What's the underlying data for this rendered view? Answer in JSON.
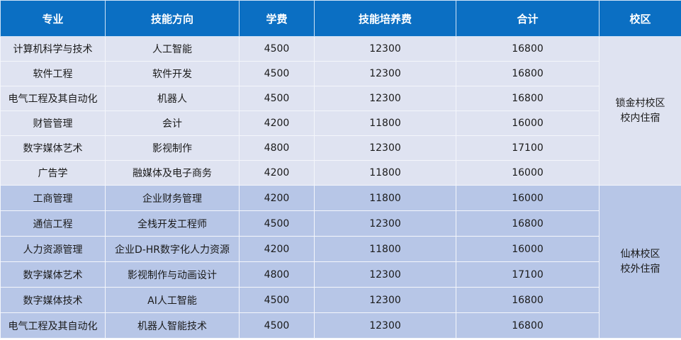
{
  "colors": {
    "header_bg": "#0b6fc3",
    "group1_bg": "#dfe3f1",
    "group2_bg": "#b7c6e7"
  },
  "headers": [
    "专业",
    "技能方向",
    "学费",
    "技能培养费",
    "合计",
    "校区"
  ],
  "groups": [
    {
      "campus_line1": "锁金村校区",
      "campus_line2": "校内住宿",
      "rows": [
        [
          "计算机科学与技术",
          "人工智能",
          "4500",
          "12300",
          "16800"
        ],
        [
          "软件工程",
          "软件开发",
          "4500",
          "12300",
          "16800"
        ],
        [
          "电气工程及其自动化",
          "机器人",
          "4500",
          "12300",
          "16800"
        ],
        [
          "财管管理",
          "会计",
          "4200",
          "11800",
          "16000"
        ],
        [
          "数字媒体艺术",
          "影视制作",
          "4800",
          "12300",
          "17100"
        ],
        [
          "广告学",
          "融媒体及电子商务",
          "4200",
          "11800",
          "16000"
        ]
      ]
    },
    {
      "campus_line1": "仙林校区",
      "campus_line2": "校外住宿",
      "rows": [
        [
          "工商管理",
          "企业财务管理",
          "4200",
          "11800",
          "16000"
        ],
        [
          "通信工程",
          "全栈开发工程师",
          "4500",
          "12300",
          "16800"
        ],
        [
          "人力资源管理",
          "企业D-HR数字化人力资源",
          "4200",
          "11800",
          "16000"
        ],
        [
          "数字媒体艺术",
          "影视制作与动画设计",
          "4800",
          "12300",
          "17100"
        ],
        [
          "数字媒体技术",
          "AI人工智能",
          "4500",
          "12300",
          "16800"
        ],
        [
          "电气工程及其自动化",
          "机器人智能技术",
          "4500",
          "12300",
          "16800"
        ]
      ]
    }
  ]
}
